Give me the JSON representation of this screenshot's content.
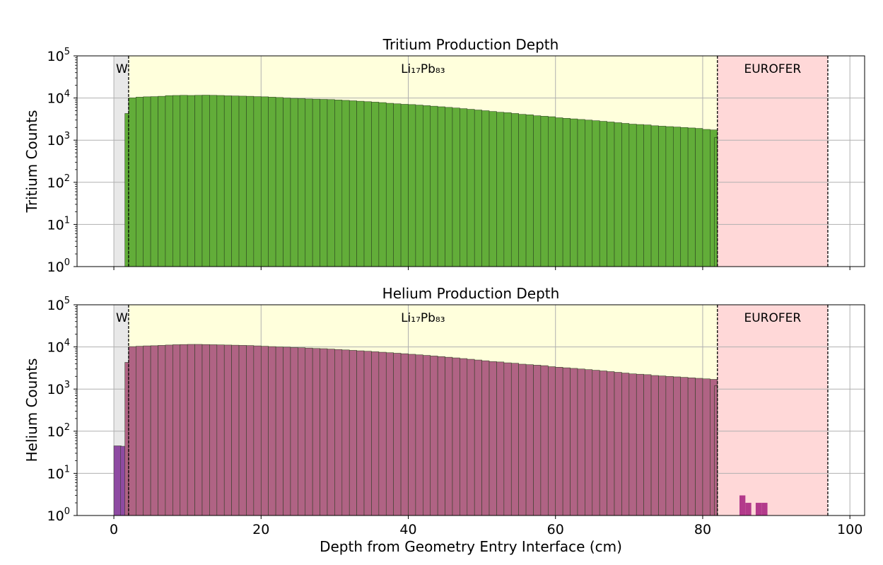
{
  "chart_data": [
    {
      "type": "bar",
      "title": "Tritium Production Depth",
      "xlabel": "",
      "ylabel": "Tritium Counts",
      "yscale": "log",
      "ylim": [
        1,
        100000
      ],
      "xlim": [
        -5,
        102
      ],
      "xticks": [
        0,
        20,
        40,
        60,
        80,
        100
      ],
      "grid": true,
      "bin_width_cm": 1,
      "regions": [
        {
          "label": "W",
          "start": 0,
          "end": 2,
          "color": "#e8e8e8"
        },
        {
          "label": "Li₁₇Pb₈₃",
          "start": 2,
          "end": 82,
          "color": "#ffffdc"
        },
        {
          "label": "EUROFER",
          "start": 82,
          "end": 97,
          "color": "#ffd8d8"
        }
      ],
      "bar_color": "#62ad39",
      "series": [
        {
          "x": [
            1.5,
            2,
            3,
            4,
            5,
            6,
            7,
            8,
            9,
            10,
            11,
            12,
            13,
            14,
            15,
            16,
            17,
            18,
            19,
            20,
            21,
            22,
            23,
            24,
            25,
            26,
            27,
            28,
            29,
            30,
            31,
            32,
            33,
            34,
            35,
            36,
            37,
            38,
            39,
            40,
            41,
            42,
            43,
            44,
            45,
            46,
            47,
            48,
            49,
            50,
            51,
            52,
            53,
            54,
            55,
            56,
            57,
            58,
            59,
            60,
            61,
            62,
            63,
            64,
            65,
            66,
            67,
            68,
            69,
            70,
            71,
            72,
            73,
            74,
            75,
            76,
            77,
            78,
            79,
            80,
            81
          ],
          "values": [
            4300,
            10100,
            10500,
            10700,
            10800,
            11000,
            11400,
            11500,
            11600,
            11500,
            11600,
            11700,
            11600,
            11500,
            11300,
            11200,
            11100,
            11000,
            10800,
            10700,
            10500,
            10300,
            10000,
            9800,
            9700,
            9500,
            9400,
            9300,
            9200,
            9000,
            8800,
            8600,
            8400,
            8200,
            8000,
            7800,
            7500,
            7300,
            7100,
            7000,
            6800,
            6600,
            6400,
            6200,
            6000,
            5800,
            5600,
            5400,
            5200,
            5000,
            4800,
            4600,
            4500,
            4300,
            4100,
            4000,
            3800,
            3700,
            3600,
            3400,
            3300,
            3200,
            3100,
            3000,
            2900,
            2800,
            2700,
            2600,
            2500,
            2400,
            2350,
            2300,
            2200,
            2150,
            2100,
            2050,
            2000,
            1950,
            1900,
            1800,
            1750
          ]
        }
      ],
      "end_bar": {
        "x": 81.6,
        "value": 1150
      }
    },
    {
      "type": "bar",
      "title": "Helium Production Depth",
      "xlabel": "Depth from Geometry Entry Interface (cm)",
      "ylabel": "Helium Counts",
      "yscale": "log",
      "ylim": [
        1,
        100000
      ],
      "xlim": [
        -5,
        102
      ],
      "xticks": [
        0,
        20,
        40,
        60,
        80,
        100
      ],
      "grid": true,
      "bin_width_cm": 1,
      "regions": [
        {
          "label": "W",
          "start": 0,
          "end": 2,
          "color": "#e8e8e8"
        },
        {
          "label": "Li₁₇Pb₈₃",
          "start": 2,
          "end": 82,
          "color": "#ffffdc"
        },
        {
          "label": "EUROFER",
          "start": 82,
          "end": 97,
          "color": "#ffd8d8"
        }
      ],
      "bar_color": "#b06384",
      "w_bar_color": "#8e4aa2",
      "eurofer_bar_color": "#b33a8b",
      "w_bars": [
        {
          "x": 0,
          "value": 45
        },
        {
          "x": 0.9,
          "value": 44
        }
      ],
      "series": [
        {
          "x": [
            1.5,
            2,
            3,
            4,
            5,
            6,
            7,
            8,
            9,
            10,
            11,
            12,
            13,
            14,
            15,
            16,
            17,
            18,
            19,
            20,
            21,
            22,
            23,
            24,
            25,
            26,
            27,
            28,
            29,
            30,
            31,
            32,
            33,
            34,
            35,
            36,
            37,
            38,
            39,
            40,
            41,
            42,
            43,
            44,
            45,
            46,
            47,
            48,
            49,
            50,
            51,
            52,
            53,
            54,
            55,
            56,
            57,
            58,
            59,
            60,
            61,
            62,
            63,
            64,
            65,
            66,
            67,
            68,
            69,
            70,
            71,
            72,
            73,
            74,
            75,
            76,
            77,
            78,
            79,
            80,
            81
          ],
          "values": [
            4300,
            10200,
            10400,
            10600,
            10700,
            10900,
            11100,
            11300,
            11400,
            11500,
            11500,
            11400,
            11300,
            11200,
            11100,
            11000,
            10900,
            10800,
            10600,
            10400,
            10200,
            10000,
            9900,
            9700,
            9600,
            9400,
            9200,
            9100,
            8900,
            8700,
            8500,
            8300,
            8100,
            7900,
            7700,
            7500,
            7300,
            7100,
            6900,
            6700,
            6500,
            6300,
            6100,
            5900,
            5700,
            5500,
            5300,
            5100,
            4900,
            4700,
            4500,
            4400,
            4200,
            4100,
            3900,
            3800,
            3700,
            3600,
            3400,
            3300,
            3200,
            3100,
            3000,
            2900,
            2800,
            2700,
            2600,
            2500,
            2400,
            2300,
            2250,
            2200,
            2100,
            2050,
            2000,
            1950,
            1900,
            1850,
            1800,
            1750,
            1700
          ]
        }
      ],
      "end_bar": {
        "x": 81.6,
        "value": 1200
      },
      "eurofer_bars": [
        {
          "x": 85,
          "value": 3
        },
        {
          "x": 85.8,
          "value": 2
        },
        {
          "x": 87.2,
          "value": 2
        },
        {
          "x": 88,
          "value": 2
        }
      ]
    }
  ]
}
